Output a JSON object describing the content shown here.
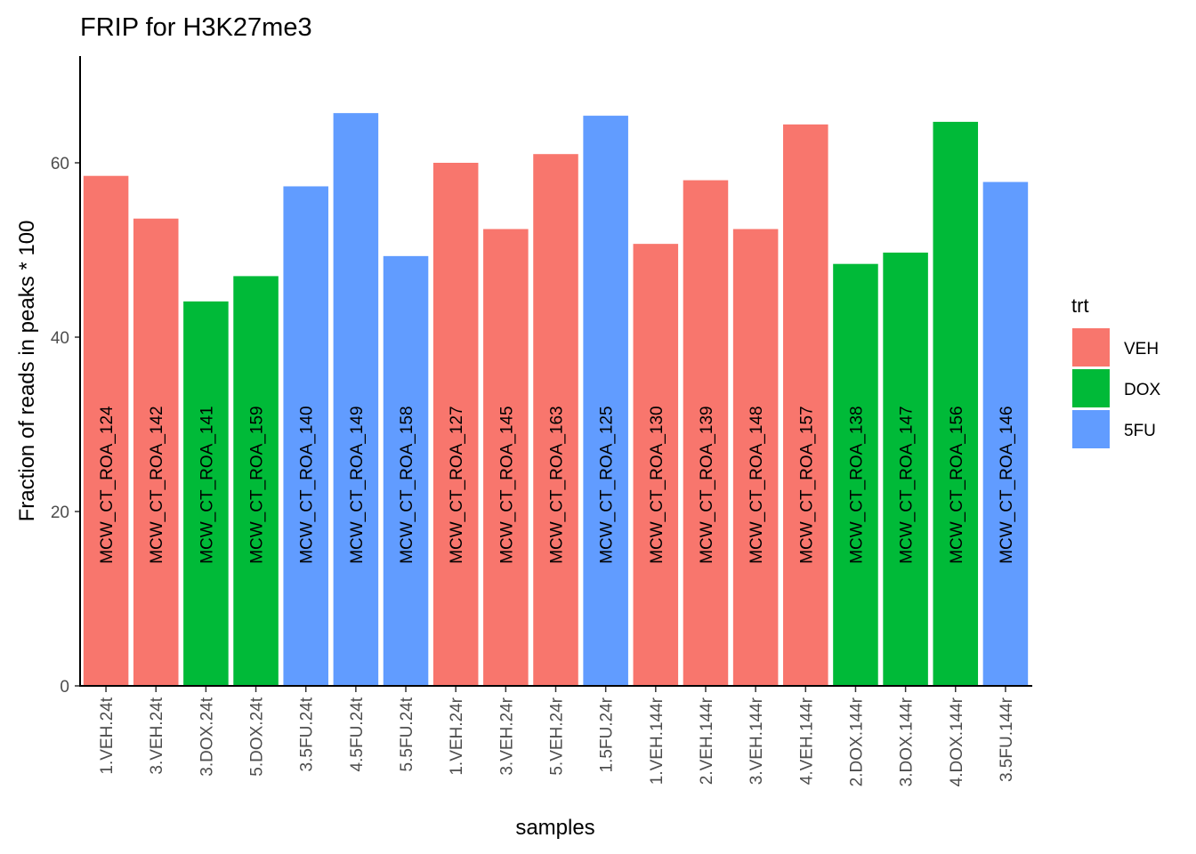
{
  "chart_data": {
    "type": "bar",
    "title": "FRIP for H3K27me3",
    "xlabel": "samples",
    "ylabel": "Fraction of reads in peaks * 100",
    "ylim": [
      0,
      72
    ],
    "yticks": [
      0,
      20,
      40,
      60
    ],
    "grid": false,
    "legend_position": "right",
    "legend": {
      "title": "trt",
      "items": [
        {
          "label": "VEH",
          "color": "#F8766D"
        },
        {
          "label": "DOX",
          "color": "#00BA38"
        },
        {
          "label": "5FU",
          "color": "#619CFF"
        }
      ]
    },
    "categories": [
      "1.VEH.24t",
      "3.VEH.24t",
      "3.DOX.24t",
      "5.DOX.24t",
      "3.5FU.24t",
      "4.5FU.24t",
      "5.5FU.24t",
      "1.VEH.24r",
      "3.VEH.24r",
      "5.VEH.24r",
      "1.5FU.24r",
      "1.VEH.144r",
      "2.VEH.144r",
      "3.VEH.144r",
      "4.VEH.144r",
      "2.DOX.144r",
      "3.DOX.144r",
      "4.DOX.144r",
      "3.5FU.144r"
    ],
    "values": [
      58.5,
      53.6,
      44.1,
      47.0,
      57.3,
      65.7,
      49.3,
      60.0,
      52.4,
      61.0,
      65.4,
      50.7,
      58.0,
      52.4,
      64.4,
      48.4,
      49.7,
      64.7,
      57.8
    ],
    "treatment": [
      "VEH",
      "VEH",
      "DOX",
      "DOX",
      "5FU",
      "5FU",
      "5FU",
      "VEH",
      "VEH",
      "VEH",
      "5FU",
      "VEH",
      "VEH",
      "VEH",
      "VEH",
      "DOX",
      "DOX",
      "DOX",
      "5FU"
    ],
    "bar_labels": [
      "MCW_CT_ROA_124",
      "MCW_CT_ROA_142",
      "MCW_CT_ROA_141",
      "MCW_CT_ROA_159",
      "MCW_CT_ROA_140",
      "MCW_CT_ROA_149",
      "MCW_CT_ROA_158",
      "MCW_CT_ROA_127",
      "MCW_CT_ROA_145",
      "MCW_CT_ROA_163",
      "MCW_CT_ROA_125",
      "MCW_CT_ROA_130",
      "MCW_CT_ROA_139",
      "MCW_CT_ROA_148",
      "MCW_CT_ROA_157",
      "MCW_CT_ROA_138",
      "MCW_CT_ROA_147",
      "MCW_CT_ROA_156",
      "MCW_CT_ROA_146"
    ]
  }
}
